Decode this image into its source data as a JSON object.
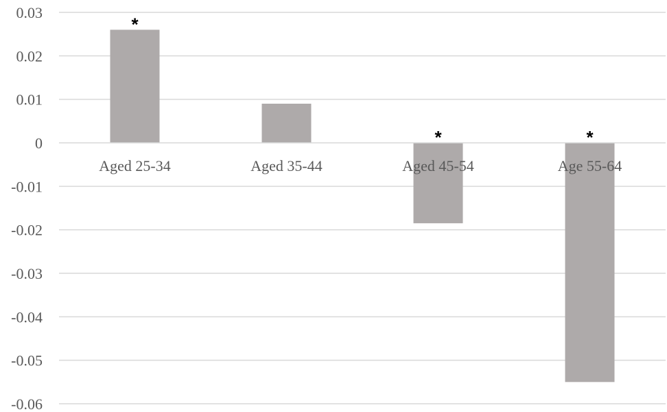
{
  "chart_data": {
    "type": "bar",
    "categories": [
      "Aged 25-34",
      "Aged 35-44",
      "Aged 45-54",
      "Age 55-64"
    ],
    "values": [
      0.026,
      0.009,
      -0.0185,
      -0.055
    ],
    "significance": [
      "*",
      "",
      "*",
      "*"
    ],
    "ylim": [
      -0.06,
      0.03
    ],
    "y_ticks": [
      0.03,
      0.02,
      0.01,
      0,
      -0.01,
      -0.02,
      -0.03,
      -0.04,
      -0.05,
      -0.06
    ],
    "y_tick_labels": [
      "0.03",
      "0.02",
      "0.01",
      "0",
      "-0.01",
      "-0.02",
      "-0.03",
      "-0.04",
      "-0.05",
      "-0.06"
    ],
    "grid": true,
    "legend": "none",
    "bar_color": "#aeaaaa",
    "title": "",
    "xlabel": "",
    "ylabel": ""
  }
}
